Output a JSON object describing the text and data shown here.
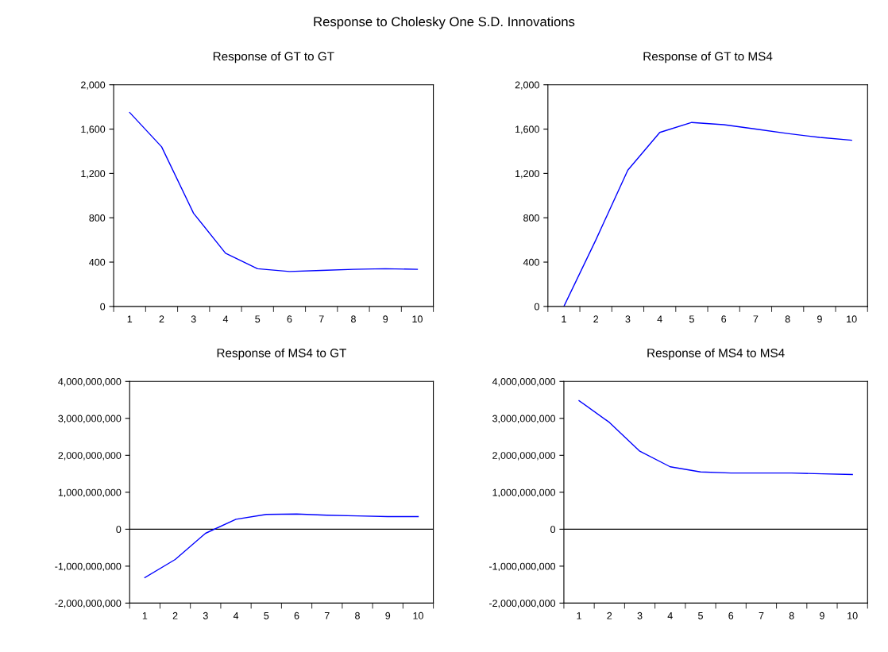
{
  "chart_data": [
    {
      "type": "line",
      "title": "Response of GT to GT",
      "annotations": [
        "Response to Cholesky One S.D. Innovations"
      ],
      "categories": [
        "1",
        "2",
        "3",
        "4",
        "5",
        "6",
        "7",
        "8",
        "9",
        "10"
      ],
      "series": [
        {
          "color": "#0000ff",
          "values": [
            1750,
            1440,
            840,
            480,
            340,
            315,
            325,
            335,
            340,
            335
          ]
        }
      ],
      "ylim": [
        0,
        2000
      ],
      "yticks": [
        0,
        400,
        800,
        {
          "value": 1200,
          "label": "1,200"
        },
        {
          "value": 1600,
          "label": "1,600"
        },
        {
          "value": 2000,
          "label": "2,000"
        }
      ],
      "grid": false,
      "legend": false
    },
    {
      "type": "line",
      "title": "Response of GT to MS4",
      "categories": [
        "1",
        "2",
        "3",
        "4",
        "5",
        "6",
        "7",
        "8",
        "9",
        "10"
      ],
      "series": [
        {
          "color": "#0000ff",
          "values": [
            0,
            600,
            1230,
            1570,
            1660,
            1640,
            1600,
            1560,
            1525,
            1500
          ]
        }
      ],
      "ylim": [
        0,
        2000
      ],
      "yticks": [
        0,
        400,
        800,
        {
          "value": 1200,
          "label": "1,200"
        },
        {
          "value": 1600,
          "label": "1,600"
        },
        {
          "value": 2000,
          "label": "2,000"
        }
      ],
      "grid": false,
      "legend": false
    },
    {
      "type": "line",
      "title": "Response of MS4 to GT",
      "categories": [
        "1",
        "2",
        "3",
        "4",
        "5",
        "6",
        "7",
        "8",
        "9",
        "10"
      ],
      "series": [
        {
          "color": "#0000ff",
          "values": [
            -1310000000,
            -820000000,
            -110000000,
            270000000,
            400000000,
            410000000,
            380000000,
            360000000,
            340000000,
            340000000
          ]
        }
      ],
      "ylim": [
        -2000000000,
        4000000000
      ],
      "yticks": [
        {
          "value": -2000000000,
          "label": "-2,000,000,000"
        },
        {
          "value": -1000000000,
          "label": "-1,000,000,000"
        },
        0,
        {
          "value": 1000000000,
          "label": "1,000,000,000"
        },
        {
          "value": 2000000000,
          "label": "2,000,000,000"
        },
        {
          "value": 3000000000,
          "label": "3,000,000,000"
        },
        {
          "value": 4000000000,
          "label": "4,000,000,000"
        }
      ],
      "ref_lines": [
        {
          "axis": "y",
          "value": 0,
          "color": "#000000"
        }
      ],
      "grid": false,
      "legend": false
    },
    {
      "type": "line",
      "title": "Response of MS4 to MS4",
      "categories": [
        "1",
        "2",
        "3",
        "4",
        "5",
        "6",
        "7",
        "8",
        "9",
        "10"
      ],
      "series": [
        {
          "color": "#0000ff",
          "values": [
            3480000000,
            2890000000,
            2110000000,
            1690000000,
            1550000000,
            1520000000,
            1520000000,
            1520000000,
            1500000000,
            1480000000
          ]
        }
      ],
      "ylim": [
        -2000000000,
        4000000000
      ],
      "yticks": [
        {
          "value": -2000000000,
          "label": "-2,000,000,000"
        },
        {
          "value": -1000000000,
          "label": "-1,000,000,000"
        },
        0,
        {
          "value": 1000000000,
          "label": "1,000,000,000"
        },
        {
          "value": 2000000000,
          "label": "2,000,000,000"
        },
        {
          "value": 3000000000,
          "label": "3,000,000,000"
        },
        {
          "value": 4000000000,
          "label": "4,000,000,000"
        }
      ],
      "ref_lines": [
        {
          "axis": "y",
          "value": 0,
          "color": "#000000"
        }
      ],
      "grid": false,
      "legend": false
    }
  ]
}
